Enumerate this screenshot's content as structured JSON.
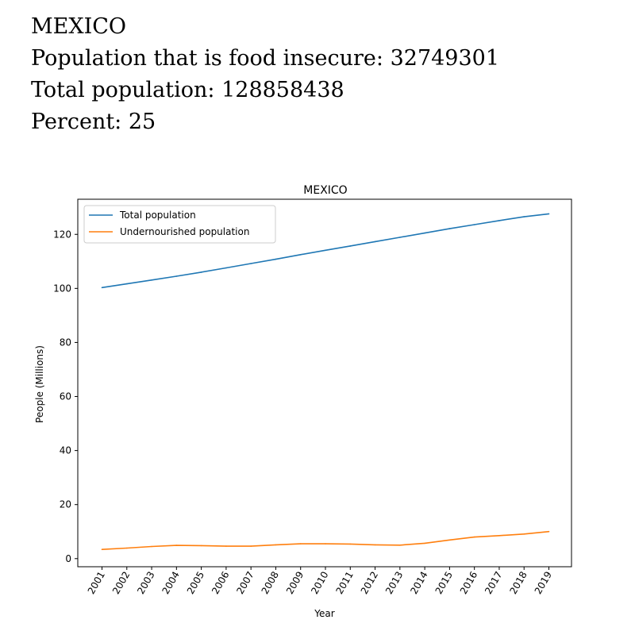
{
  "header": {
    "country": "MEXICO",
    "food_insecure_line": "Population that is food insecure: 32749301",
    "total_population_line": "Total population: 128858438",
    "percent_line": "Percent: 25"
  },
  "colors": {
    "total": "#1f77b4",
    "undernourished": "#ff7f0e"
  },
  "chart_data": {
    "type": "line",
    "title": "MEXICO",
    "xlabel": "Year",
    "ylabel": "People (Millions)",
    "categories": [
      "2001",
      "2002",
      "2003",
      "2004",
      "2005",
      "2006",
      "2007",
      "2008",
      "2009",
      "2010",
      "2011",
      "2012",
      "2013",
      "2014",
      "2015",
      "2016",
      "2017",
      "2018",
      "2019"
    ],
    "ylim": [
      -3,
      133
    ],
    "yticks": [
      0,
      20,
      40,
      60,
      80,
      100,
      120
    ],
    "legend_position": "top-left",
    "grid": false,
    "series": [
      {
        "name": "Total population",
        "color_key": "total",
        "values": [
          100.3,
          101.7,
          103.1,
          104.5,
          106.0,
          107.6,
          109.2,
          110.8,
          112.5,
          114.1,
          115.7,
          117.3,
          118.9,
          120.5,
          122.1,
          123.6,
          125.1,
          126.5,
          127.6
        ]
      },
      {
        "name": "Undernourished population",
        "color_key": "undernourished",
        "values": [
          3.4,
          3.9,
          4.5,
          4.9,
          4.8,
          4.6,
          4.6,
          5.1,
          5.5,
          5.5,
          5.4,
          5.1,
          5.0,
          5.7,
          6.9,
          8.0,
          8.5,
          9.1,
          10.0
        ]
      }
    ]
  }
}
